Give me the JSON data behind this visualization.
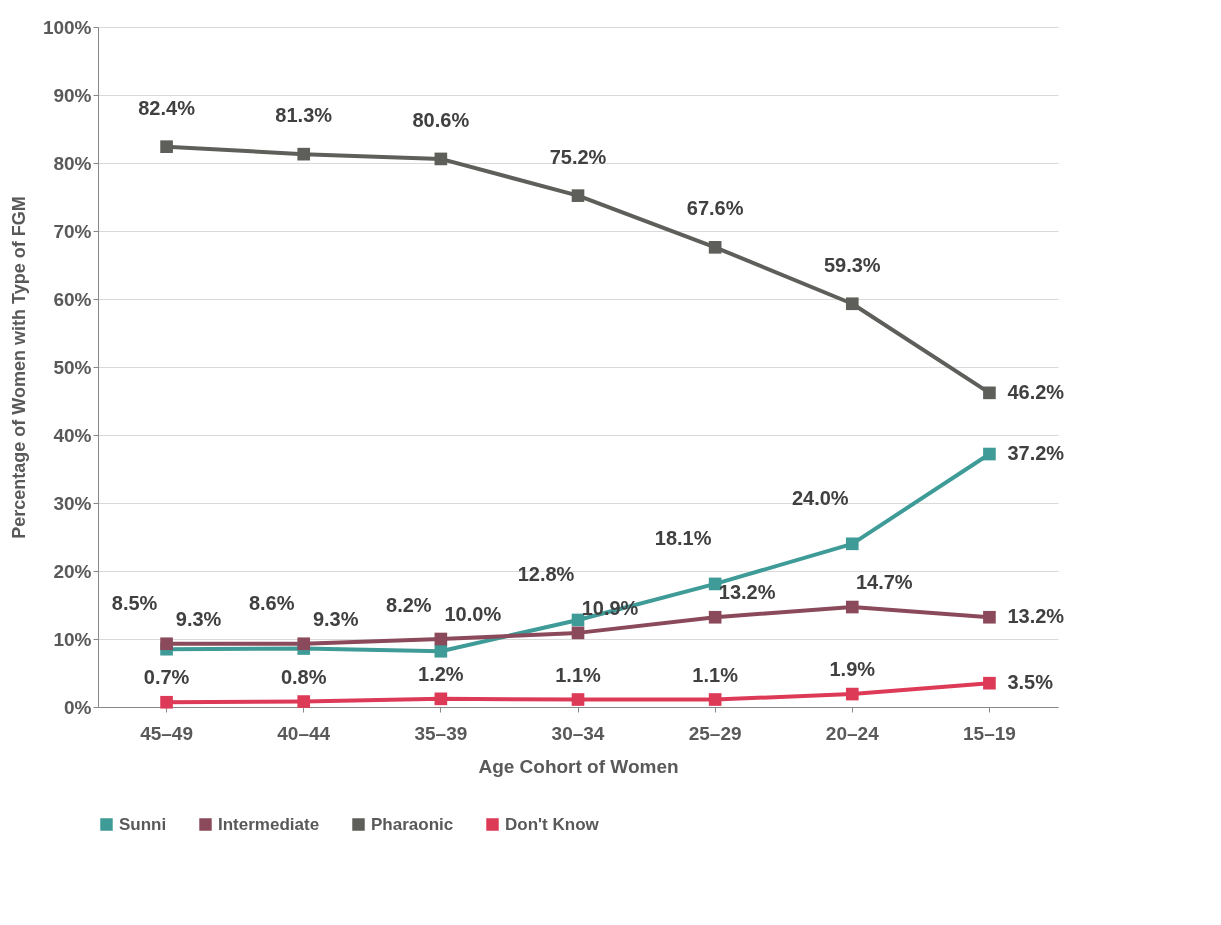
{
  "chart_data": {
    "type": "line",
    "xlabel": "Age Cohort of Women",
    "ylabel": "Percentage of Women with Type of FGM",
    "categories": [
      "45–49",
      "40–44",
      "35–39",
      "30–34",
      "25–29",
      "20–24",
      "15–19"
    ],
    "series": [
      {
        "name": "Sunni",
        "color": "#3f9b97",
        "values": [
          8.5,
          8.6,
          8.2,
          12.8,
          18.1,
          24.0,
          37.2
        ],
        "value_labels": [
          "8.5%",
          "8.6%",
          "8.2%",
          "12.8%",
          "18.1%",
          "24.0%",
          "37.2%"
        ]
      },
      {
        "name": "Intermediate",
        "color": "#8b4a5b",
        "values": [
          9.3,
          9.3,
          10.0,
          10.9,
          13.2,
          14.7,
          13.2
        ],
        "value_labels": [
          "9.3%",
          "9.3%",
          "10.0%",
          "10.9%",
          "13.2%",
          "14.7%",
          "13.2%"
        ]
      },
      {
        "name": "Pharaonic",
        "color": "#5e5e5a",
        "values": [
          82.4,
          81.3,
          80.6,
          75.2,
          67.6,
          59.3,
          46.2
        ],
        "value_labels": [
          "82.4%",
          "81.3%",
          "80.6%",
          "75.2%",
          "67.6%",
          "59.3%",
          "46.2%"
        ]
      },
      {
        "name": "Don't Know",
        "color": "#dd3a57",
        "values": [
          0.7,
          0.8,
          1.2,
          1.1,
          1.1,
          1.9,
          3.5
        ],
        "value_labels": [
          "0.7%",
          "0.8%",
          "1.2%",
          "1.1%",
          "1.1%",
          "1.9%",
          "3.5%"
        ]
      }
    ],
    "ylim": [
      0,
      100
    ],
    "yticks": [
      {
        "value": 0,
        "label": "0%"
      },
      {
        "value": 10,
        "label": "10%"
      },
      {
        "value": 20,
        "label": "20%"
      },
      {
        "value": 30,
        "label": "30%"
      },
      {
        "value": 40,
        "label": "40%"
      },
      {
        "value": 50,
        "label": "50%"
      },
      {
        "value": 60,
        "label": "60%"
      },
      {
        "value": 70,
        "label": "70%"
      },
      {
        "value": 80,
        "label": "80%"
      },
      {
        "value": 90,
        "label": "90%"
      },
      {
        "value": 100,
        "label": "100%"
      }
    ],
    "grid": "y",
    "legend": "bottom",
    "marker": "square",
    "line_style": "solid"
  }
}
